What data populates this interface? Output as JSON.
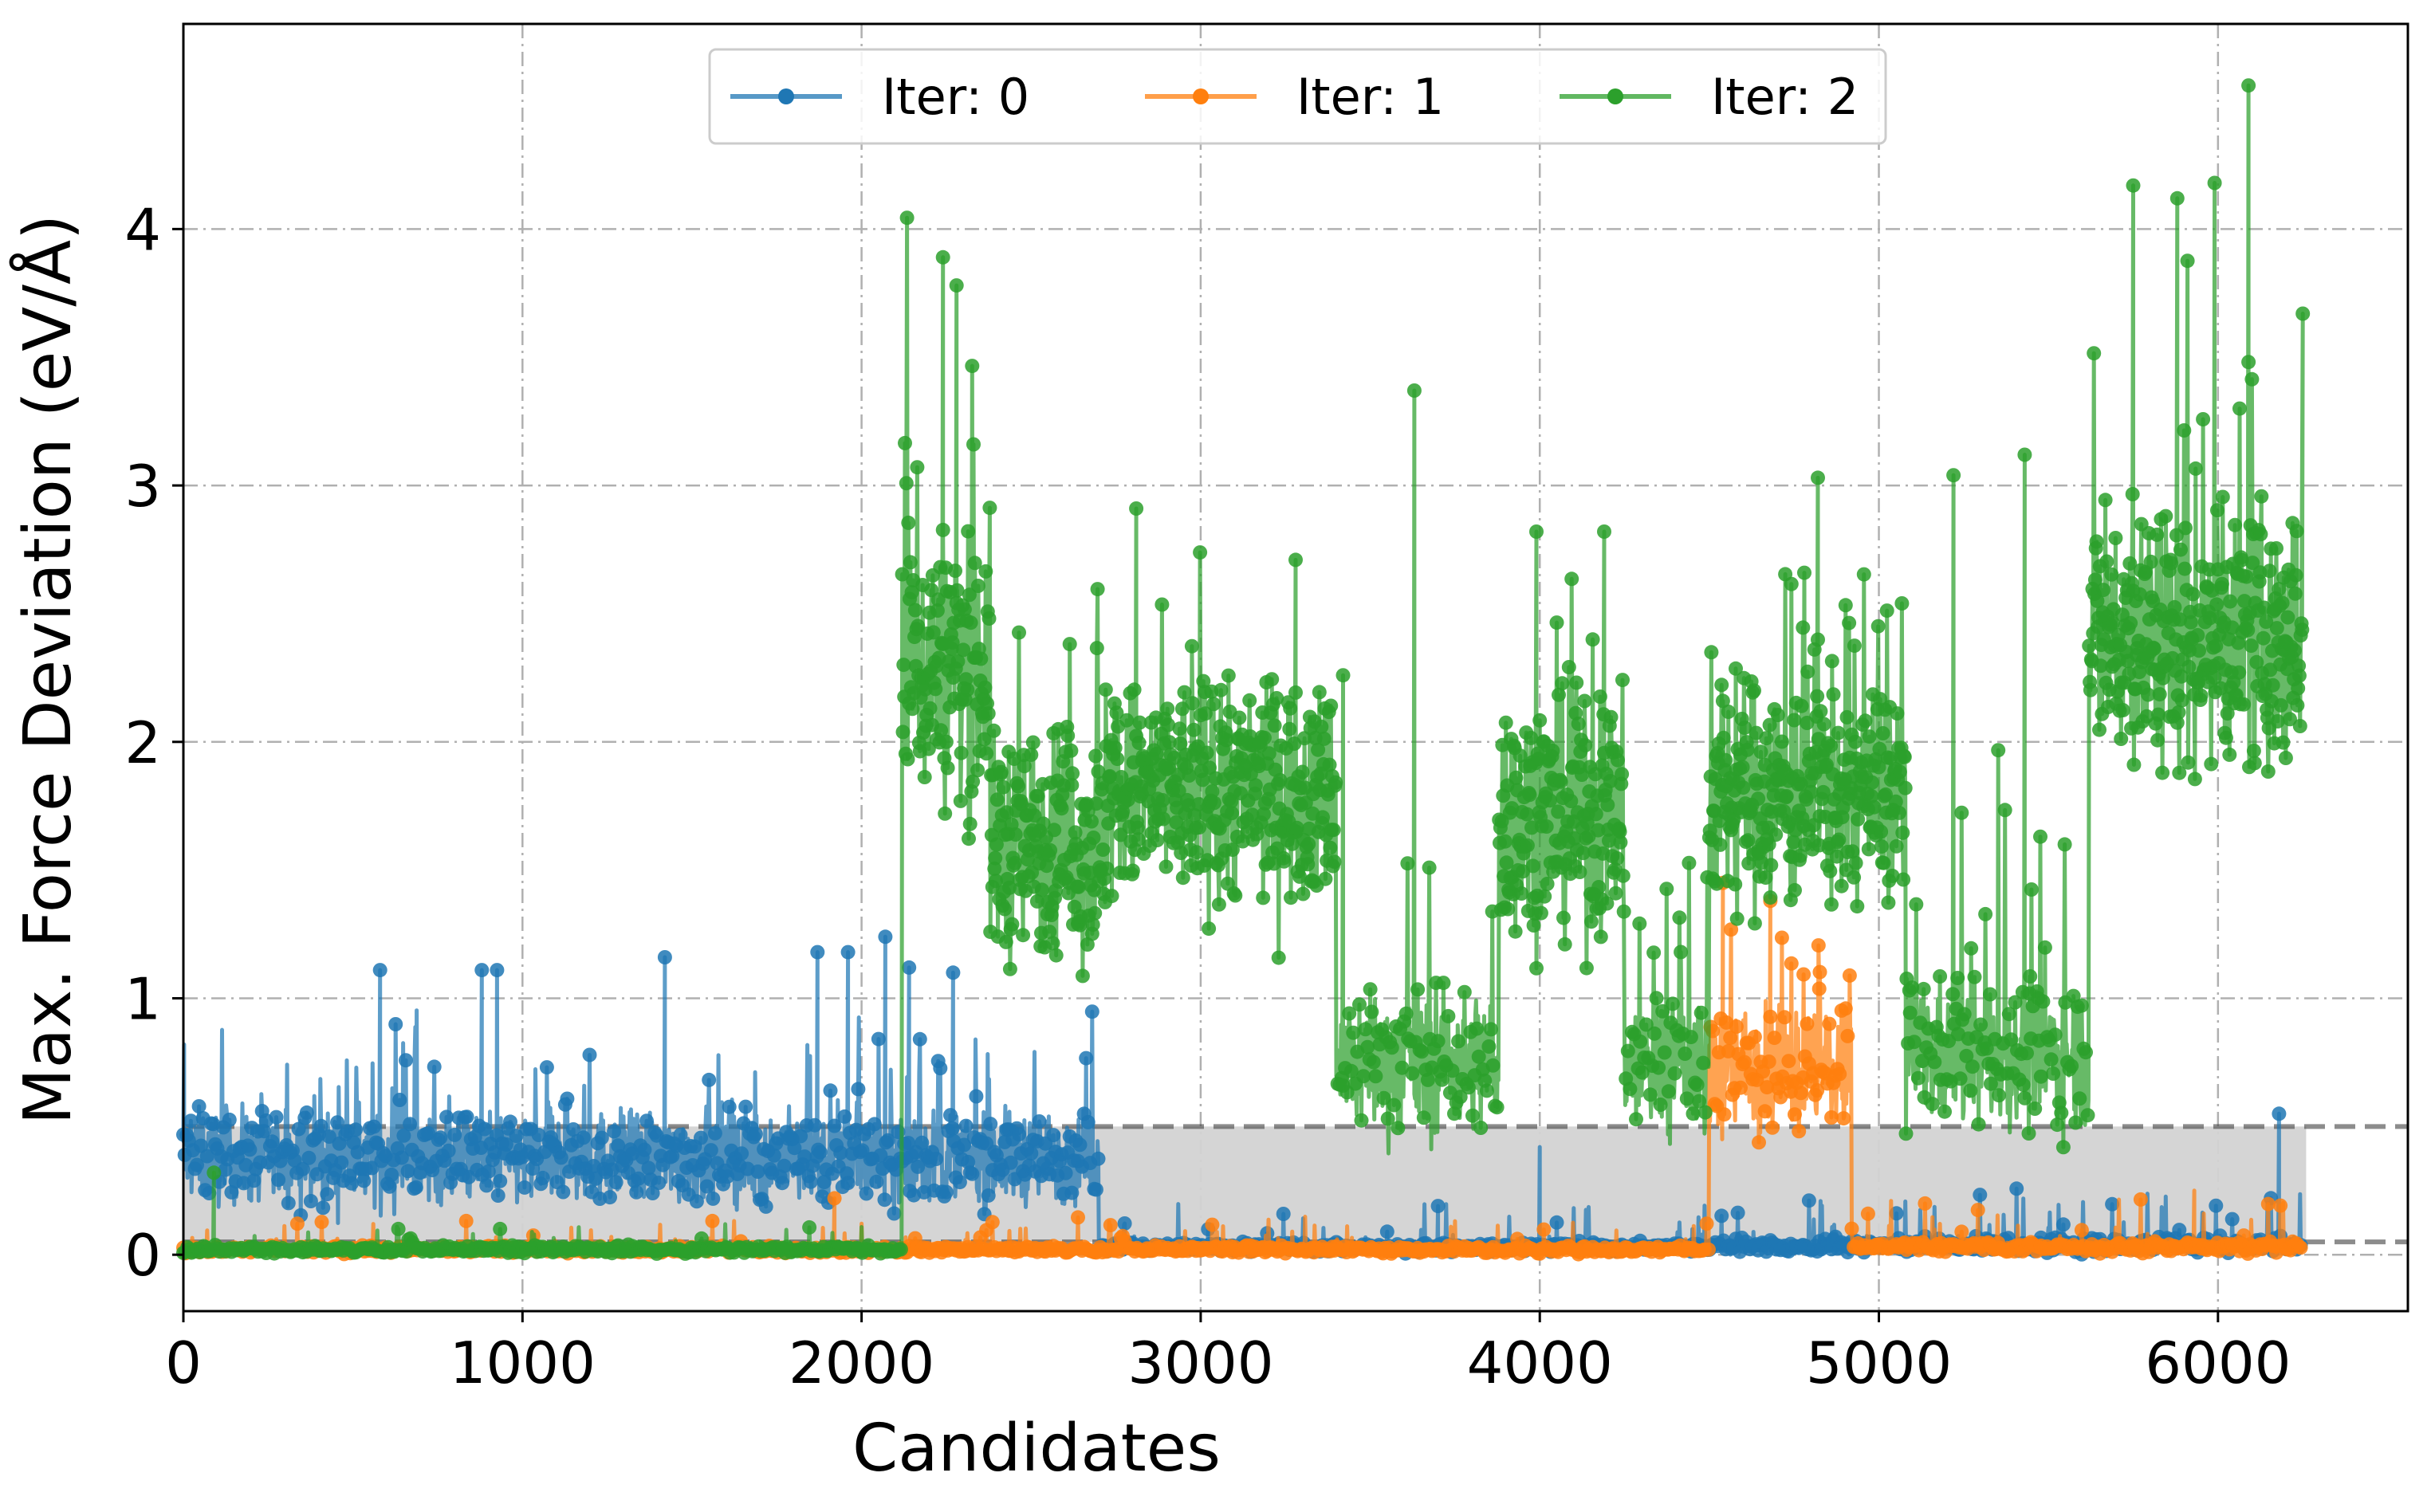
{
  "chart_data": {
    "type": "line",
    "xlabel": "Candidates",
    "ylabel": "Max. Force Deviation (eV/Å)",
    "xlim": [
      0,
      6560
    ],
    "ylim": [
      -0.22,
      4.8
    ],
    "x_ticks": [
      0,
      1000,
      2000,
      3000,
      4000,
      5000,
      6000
    ],
    "y_ticks": [
      0,
      1,
      2,
      3,
      4
    ],
    "grid": true,
    "legend": {
      "placement": "top-center",
      "ncol": 3
    },
    "trust_levels": {
      "lo": 0.05,
      "hi": 0.5
    },
    "trust_band_x_end": 6260,
    "series": [
      {
        "name": "Iter: 0",
        "color": "#1f77b4",
        "segments": [
          {
            "x": [
              0,
              2700
            ],
            "base": 0.38,
            "spread": 0.18,
            "spike_prob": 0.05,
            "spike_max": 0.45,
            "floor": 0.0
          },
          {
            "x": [
              2700,
              4500
            ],
            "base": 0.03,
            "spread": 0.02,
            "spike_prob": 0.04,
            "spike_max": 0.18,
            "floor": 0.0
          },
          {
            "x": [
              4500,
              4920
            ],
            "base": 0.03,
            "spread": 0.03,
            "spike_prob": 0.05,
            "spike_max": 0.2,
            "floor": 0.0
          },
          {
            "x": [
              4920,
              6250
            ],
            "base": 0.04,
            "spread": 0.03,
            "spike_prob": 0.05,
            "spike_max": 0.2,
            "floor": 0.0
          }
        ],
        "points": [
          [
            2,
            0.82
          ],
          [
            580,
            1.11
          ],
          [
            880,
            1.11
          ],
          [
            925,
            1.11
          ],
          [
            1420,
            1.16
          ],
          [
            1870,
            1.18
          ],
          [
            1960,
            1.18
          ],
          [
            2070,
            1.24
          ],
          [
            2140,
            1.12
          ],
          [
            2270,
            1.1
          ],
          [
            6180,
            0.55
          ],
          [
            3700,
            0.19
          ],
          [
            4000,
            0.42
          ]
        ]
      },
      {
        "name": "Iter: 1",
        "color": "#ff7f0e",
        "segments": [
          {
            "x": [
              0,
              4500
            ],
            "base": 0.02,
            "spread": 0.015,
            "spike_prob": 0.03,
            "spike_max": 0.12,
            "floor": 0.0
          },
          {
            "x": [
              4500,
              4920
            ],
            "base": 0.72,
            "spread": 0.25,
            "spike_prob": 0.08,
            "spike_max": 0.6,
            "floor": 0.3
          },
          {
            "x": [
              4920,
              6250
            ],
            "base": 0.03,
            "spread": 0.02,
            "spike_prob": 0.04,
            "spike_max": 0.2,
            "floor": 0.0
          }
        ],
        "points": [
          [
            4540,
            1.45
          ],
          [
            4680,
            1.38
          ],
          [
            1920,
            0.22
          ],
          [
            5930,
            0.25
          ]
        ]
      },
      {
        "name": "Iter: 2",
        "color": "#2ca02c",
        "segments": [
          {
            "x": [
              0,
              2120
            ],
            "base": 0.02,
            "spread": 0.015,
            "spike_prob": 0.02,
            "spike_max": 0.1,
            "floor": 0.0
          },
          {
            "x": [
              2120,
              2380
            ],
            "base": 2.3,
            "spread": 0.55,
            "spike_prob": 0.08,
            "spike_max": 1.3,
            "floor": 0.9
          },
          {
            "x": [
              2380,
              2720
            ],
            "base": 1.6,
            "spread": 0.45,
            "spike_prob": 0.06,
            "spike_max": 0.9,
            "floor": 0.3
          },
          {
            "x": [
              2720,
              3400
            ],
            "base": 1.8,
            "spread": 0.42,
            "spike_prob": 0.05,
            "spike_max": 0.8,
            "floor": 0.7
          },
          {
            "x": [
              3400,
              3880
            ],
            "base": 0.75,
            "spread": 0.28,
            "spike_prob": 0.04,
            "spike_max": 0.8,
            "floor": 0.25
          },
          {
            "x": [
              3880,
              4250
            ],
            "base": 1.7,
            "spread": 0.45,
            "spike_prob": 0.06,
            "spike_max": 0.8,
            "floor": 0.6
          },
          {
            "x": [
              4250,
              4500
            ],
            "base": 0.75,
            "spread": 0.3,
            "spike_prob": 0.06,
            "spike_max": 0.9,
            "floor": 0.2
          },
          {
            "x": [
              4500,
              5080
            ],
            "base": 1.8,
            "spread": 0.45,
            "spike_prob": 0.06,
            "spike_max": 0.9,
            "floor": 0.6
          },
          {
            "x": [
              5080,
              5620
            ],
            "base": 0.78,
            "spread": 0.28,
            "spike_prob": 0.05,
            "spike_max": 1.0,
            "floor": 0.2
          },
          {
            "x": [
              5620,
              6250
            ],
            "base": 2.4,
            "spread": 0.5,
            "spike_prob": 0.08,
            "spike_max": 1.2,
            "floor": 1.0
          }
        ],
        "points": [
          [
            90,
            0.32
          ],
          [
            2240,
            3.89
          ],
          [
            2280,
            3.78
          ],
          [
            3630,
            3.37
          ],
          [
            6090,
            4.56
          ],
          [
            5750,
            4.17
          ],
          [
            5990,
            4.18
          ],
          [
            5880,
            4.12
          ],
          [
            6250,
            3.67
          ],
          [
            4820,
            3.03
          ],
          [
            5220,
            3.04
          ],
          [
            5430,
            3.12
          ],
          [
            3990,
            2.82
          ],
          [
            4190,
            2.82
          ],
          [
            2810,
            2.91
          ],
          [
            3280,
            2.71
          ],
          [
            3420,
            2.26
          ]
        ]
      }
    ]
  }
}
